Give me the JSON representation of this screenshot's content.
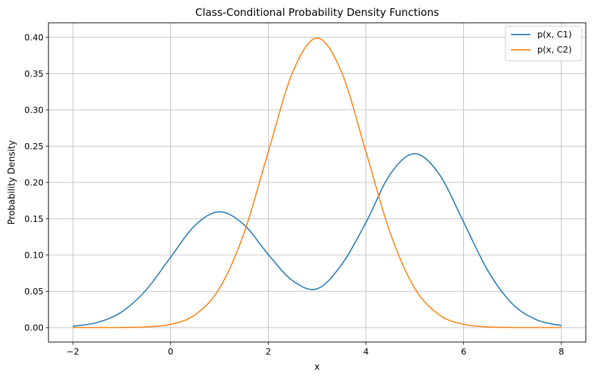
{
  "chart_data": {
    "type": "line",
    "title": "Class-Conditional Probability Density Functions",
    "xlabel": "x",
    "ylabel": "Probability Density",
    "xlim": [
      -2.5,
      8.5
    ],
    "ylim": [
      -0.02,
      0.42
    ],
    "xticks": [
      -2,
      0,
      2,
      4,
      6,
      8
    ],
    "xtick_labels": [
      "−2",
      "0",
      "2",
      "4",
      "6",
      "8"
    ],
    "yticks": [
      0.0,
      0.05,
      0.1,
      0.15,
      0.2,
      0.25,
      0.3,
      0.35,
      0.4
    ],
    "ytick_labels": [
      "0.00",
      "0.05",
      "0.10",
      "0.15",
      "0.20",
      "0.25",
      "0.30",
      "0.35",
      "0.40"
    ],
    "grid": true,
    "legend": "top-right",
    "x_range": [
      -2,
      8
    ],
    "series": [
      {
        "name": "p(x, C1)",
        "color": "#1f77b4",
        "x": [
          -2.0,
          -1.5,
          -1.0,
          -0.5,
          0.0,
          0.5,
          1.0,
          1.5,
          2.0,
          2.5,
          3.0,
          3.5,
          4.0,
          4.5,
          5.0,
          5.5,
          6.0,
          6.5,
          7.0,
          7.5,
          8.0
        ],
        "values": [
          0.0018,
          0.007,
          0.0216,
          0.0519,
          0.0968,
          0.1408,
          0.1596,
          0.1419,
          0.1007,
          0.0645,
          0.0534,
          0.0867,
          0.1449,
          0.2117,
          0.2396,
          0.2113,
          0.1452,
          0.0778,
          0.0325,
          0.0105,
          0.0027
        ]
      },
      {
        "name": "p(x, C2)",
        "color": "#ff7f0e",
        "x": [
          -2.0,
          -1.5,
          -1.0,
          -0.5,
          0.0,
          0.5,
          1.0,
          1.5,
          2.0,
          2.5,
          3.0,
          3.5,
          4.0,
          4.5,
          5.0,
          5.5,
          6.0,
          6.5,
          7.0,
          7.5,
          8.0
        ],
        "values": [
          0.0,
          0.0,
          0.0001,
          0.0009,
          0.0044,
          0.0175,
          0.054,
          0.1295,
          0.242,
          0.3521,
          0.3989,
          0.3521,
          0.242,
          0.1295,
          0.054,
          0.0175,
          0.0044,
          0.0009,
          0.0001,
          0.0,
          0.0
        ]
      }
    ]
  }
}
